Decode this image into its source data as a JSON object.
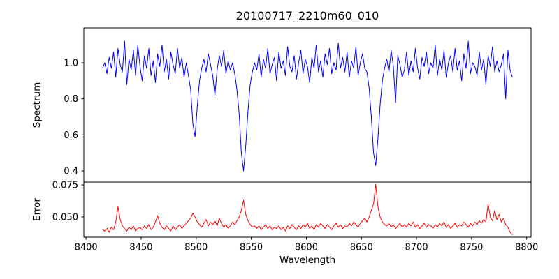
{
  "title": "20100717_2210m60_010",
  "xlabel": "Wavelength",
  "accent_colors": {
    "spectrum_line": "#0000ff",
    "error_line": "#ff0000",
    "axis": "#000000",
    "background": "#ffffff"
  },
  "chart_data": [
    {
      "type": "line",
      "panel": "spectrum",
      "ylabel": "Spectrum",
      "color": "#0000ff",
      "x_start": 8415,
      "x_step": 2,
      "xlim": [
        8398,
        8804
      ],
      "ylim": [
        0.338,
        1.194
      ],
      "yticks": [
        0.4,
        0.6,
        0.8,
        1.0
      ],
      "ytick_labels": [
        "0.4",
        "0.6",
        "0.8",
        "1.0"
      ],
      "grid": false,
      "legend": false,
      "annotations": [
        "absorption dips near 8498, 8542, 8662"
      ],
      "values": [
        0.97,
        1.0,
        0.94,
        1.03,
        0.97,
        1.06,
        0.92,
        1.08,
        0.99,
        0.95,
        1.12,
        0.88,
        1.02,
        0.96,
        1.07,
        0.93,
        1.1,
        0.98,
        0.9,
        1.04,
        0.97,
        1.08,
        0.93,
        1.01,
        0.89,
        1.05,
        0.98,
        1.1,
        0.95,
        1.02,
        0.91,
        1.06,
        0.99,
        0.94,
        1.08,
        0.97,
        1.03,
        0.92,
        1.0,
        0.93,
        0.85,
        0.66,
        0.59,
        0.76,
        0.9,
        0.97,
        1.02,
        0.95,
        1.05,
        0.99,
        0.93,
        0.82,
        0.96,
        1.04,
        0.98,
        1.07,
        0.94,
        1.01,
        0.96,
        1.0,
        0.94,
        0.85,
        0.72,
        0.5,
        0.4,
        0.54,
        0.73,
        0.88,
        0.95,
        1.0,
        0.96,
        1.05,
        0.92,
        1.02,
        0.97,
        1.08,
        0.94,
        0.99,
        1.03,
        0.9,
        1.06,
        0.97,
        1.01,
        0.93,
        1.09,
        0.98,
        0.95,
        1.04,
        0.91,
        1.0,
        1.07,
        0.94,
        1.02,
        0.98,
        0.89,
        1.03,
        0.97,
        1.1,
        0.95,
        1.01,
        0.92,
        1.05,
        0.99,
        1.08,
        0.94,
        1.0,
        0.96,
        1.11,
        0.97,
        1.03,
        0.95,
        1.06,
        0.92,
        1.01,
        0.97,
        1.09,
        0.93,
        1.0,
        1.05,
        0.97,
        0.95,
        0.86,
        0.7,
        0.5,
        0.43,
        0.58,
        0.77,
        0.9,
        0.97,
        1.02,
        0.95,
        1.07,
        0.98,
        0.78,
        1.04,
        0.99,
        0.92,
        0.96,
        1.06,
        0.93,
        1.01,
        0.95,
        1.08,
        0.97,
        0.91,
        1.03,
        0.98,
        1.06,
        0.94,
        1.0,
        0.97,
        1.1,
        0.93,
        1.02,
        0.96,
        1.07,
        0.92,
        1.0,
        1.04,
        0.95,
        1.08,
        0.96,
        1.01,
        0.9,
        1.05,
        0.97,
        1.12,
        0.94,
        1.0,
        0.98,
        0.93,
        1.06,
        0.96,
        1.02,
        0.88,
        1.04,
        0.98,
        1.09,
        0.95,
        1.01,
        0.95,
        0.99,
        1.05,
        0.8,
        1.07,
        0.96,
        0.92
      ]
    },
    {
      "type": "line",
      "panel": "error",
      "ylabel": "Error",
      "xlabel": "Wavelength",
      "color": "#ff0000",
      "x_start": 8415,
      "x_step": 2,
      "xlim": [
        8398,
        8804
      ],
      "ylim": [
        0.0342,
        0.0772
      ],
      "yticks": [
        0.05,
        0.075
      ],
      "ytick_labels": [
        "0.050",
        "0.075"
      ],
      "xticks": [
        8400,
        8450,
        8500,
        8550,
        8600,
        8650,
        8700,
        8750,
        8800
      ],
      "xtick_labels": [
        "8400",
        "8450",
        "8500",
        "8550",
        "8600",
        "8650",
        "8700",
        "8750",
        "8800"
      ],
      "grid": false,
      "legend": false,
      "annotations": [
        "error peaks near 8429, 8542, 8662 (max 0.0755)"
      ],
      "values": [
        0.04,
        0.039,
        0.041,
        0.038,
        0.042,
        0.04,
        0.046,
        0.058,
        0.048,
        0.043,
        0.041,
        0.039,
        0.042,
        0.04,
        0.043,
        0.039,
        0.041,
        0.042,
        0.04,
        0.043,
        0.041,
        0.044,
        0.04,
        0.042,
        0.046,
        0.051,
        0.045,
        0.042,
        0.04,
        0.043,
        0.041,
        0.039,
        0.043,
        0.04,
        0.042,
        0.044,
        0.041,
        0.043,
        0.045,
        0.047,
        0.049,
        0.053,
        0.05,
        0.046,
        0.044,
        0.042,
        0.045,
        0.048,
        0.043,
        0.046,
        0.044,
        0.047,
        0.043,
        0.049,
        0.045,
        0.042,
        0.044,
        0.041,
        0.043,
        0.046,
        0.044,
        0.047,
        0.05,
        0.055,
        0.063,
        0.052,
        0.047,
        0.044,
        0.042,
        0.043,
        0.041,
        0.043,
        0.04,
        0.042,
        0.044,
        0.041,
        0.043,
        0.04,
        0.042,
        0.041,
        0.043,
        0.04,
        0.042,
        0.039,
        0.043,
        0.041,
        0.044,
        0.042,
        0.04,
        0.043,
        0.041,
        0.044,
        0.042,
        0.045,
        0.041,
        0.043,
        0.04,
        0.044,
        0.042,
        0.045,
        0.043,
        0.041,
        0.044,
        0.042,
        0.04,
        0.043,
        0.045,
        0.042,
        0.044,
        0.041,
        0.043,
        0.042,
        0.045,
        0.043,
        0.046,
        0.044,
        0.042,
        0.045,
        0.047,
        0.049,
        0.046,
        0.05,
        0.055,
        0.06,
        0.0755,
        0.058,
        0.05,
        0.046,
        0.044,
        0.043,
        0.045,
        0.042,
        0.044,
        0.041,
        0.043,
        0.045,
        0.042,
        0.044,
        0.042,
        0.045,
        0.043,
        0.046,
        0.042,
        0.044,
        0.041,
        0.043,
        0.045,
        0.042,
        0.044,
        0.043,
        0.041,
        0.044,
        0.042,
        0.045,
        0.043,
        0.046,
        0.042,
        0.044,
        0.041,
        0.043,
        0.045,
        0.042,
        0.044,
        0.043,
        0.046,
        0.044,
        0.042,
        0.045,
        0.043,
        0.046,
        0.044,
        0.047,
        0.045,
        0.048,
        0.046,
        0.06,
        0.05,
        0.047,
        0.055,
        0.048,
        0.052,
        0.046,
        0.049,
        0.044,
        0.042,
        0.038,
        0.036
      ]
    }
  ]
}
